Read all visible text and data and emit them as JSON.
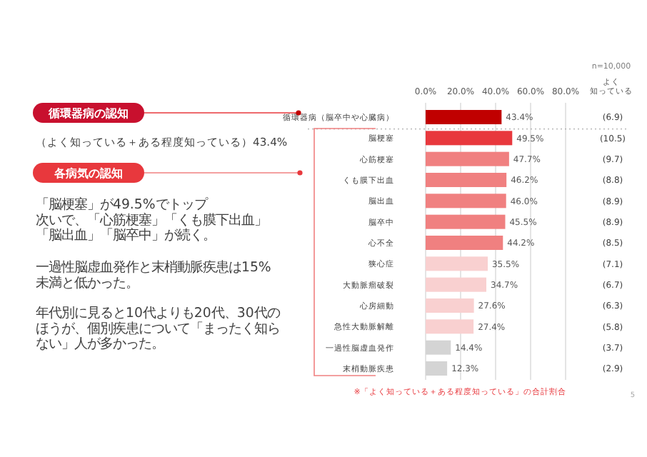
{
  "chart_data": {
    "type": "bar",
    "orientation": "horizontal",
    "categories": [
      "循環器病（脳卒中や心臓病）",
      "脳梗塞",
      "心筋梗塞",
      "くも膜下出血",
      "脳出血",
      "脳卒中",
      "心不全",
      "狭心症",
      "大動脈瘤破裂",
      "心房細動",
      "急性大動脈解離",
      "一過性脳虚血発作",
      "末梢動脈疾患"
    ],
    "values": [
      43.4,
      49.5,
      47.7,
      46.2,
      46.0,
      45.5,
      44.2,
      35.5,
      34.7,
      27.6,
      27.4,
      14.4,
      12.3
    ],
    "colors": [
      "#c00000",
      "#e8383d",
      "#f08080",
      "#f08080",
      "#f08080",
      "#f08080",
      "#f08080",
      "#f9d0d0",
      "#f9d0d0",
      "#f9d0d0",
      "#f9d0d0",
      "#d4d4d4",
      "#d4d4d4"
    ],
    "value_labels": [
      "43.4%",
      "49.5%",
      "47.7%",
      "46.2%",
      "46.0%",
      "45.5%",
      "44.2%",
      "35.5%",
      "34.7%",
      "27.6%",
      "27.4%",
      "14.4%",
      "12.3%"
    ],
    "xlim": [
      0,
      80
    ],
    "xticks": [
      {
        "value": 0,
        "label": "0.0%"
      },
      {
        "value": 20,
        "label": "20.0%"
      },
      {
        "value": 40,
        "label": "40.0%"
      },
      {
        "value": 60,
        "label": "60.0%"
      },
      {
        "value": 80,
        "label": "80.0%"
      }
    ],
    "grid": "x",
    "annotations": [
      "n=10,000",
      "よく",
      "知っている",
      "(6.9)",
      "(10.5)",
      "(9.7)",
      "(8.8)",
      "(8.9)",
      "(8.9)",
      "(8.5)",
      "(7.1)",
      "(6.7)",
      "(6.3)",
      "(5.8)",
      "(3.7)",
      "(2.9)",
      "循環器病の認知",
      "（よく知っている＋ある程度知っている）43.4%",
      "各病気の認知",
      "「脳梗塞」が49.5%でトップ",
      "次いで、「心筋梗塞」「くも膜下出血」",
      "「脳出血」「脳卒中」が続く。",
      "一過性脳虚血発作と末梢動脈疾患は15%",
      "未満と低かった。",
      "年代別に見ると10代よりも20代、30代の",
      "ほうが、個別疾患について「まったく知ら",
      "ない」人が多かった。",
      "※「よく知っている＋ある程度知っている」の合計割合",
      "5"
    ]
  }
}
